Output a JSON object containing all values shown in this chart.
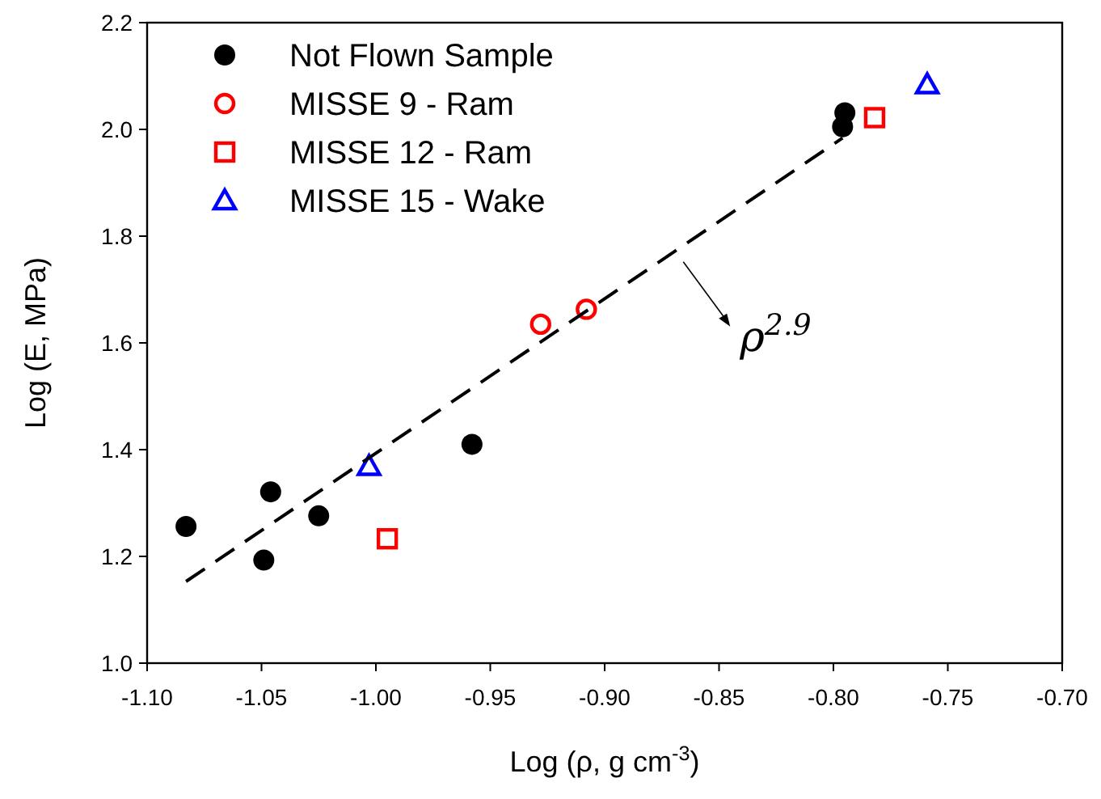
{
  "chart_data": {
    "type": "scatter",
    "xlabel": "Log (ρ, g cm$^{-3}$)",
    "ylabel": "Log (E, MPa)",
    "xlim": [
      -1.1,
      -0.7
    ],
    "xticks": [
      {
        "value": -1.1,
        "label": "-1.10"
      },
      {
        "value": -1.05,
        "label": "-1.05"
      },
      {
        "value": -1.0,
        "label": "-1.00"
      },
      {
        "value": -0.95,
        "label": "-0.95"
      },
      {
        "value": -0.9,
        "label": "-0.90"
      },
      {
        "value": -0.85,
        "label": "-0.85"
      },
      {
        "value": -0.8,
        "label": "-0.80"
      },
      {
        "value": -0.75,
        "label": "-0.75"
      },
      {
        "value": -0.7,
        "label": "-0.70"
      }
    ],
    "ylim": [
      1.0,
      2.2
    ],
    "yticks": [
      {
        "value": 1.0,
        "label": "1.0"
      },
      {
        "value": 1.2,
        "label": "1.2"
      },
      {
        "value": 1.4,
        "label": "1.4"
      },
      {
        "value": 1.6,
        "label": "1.6"
      },
      {
        "value": 1.8,
        "label": "1.8"
      },
      {
        "value": 2.0,
        "label": "2.0"
      },
      {
        "value": 2.2,
        "label": "2.2"
      }
    ],
    "grid": false,
    "legend": "top left",
    "series": [
      {
        "name": "Not Flown Sample",
        "color": "#000000",
        "marker": "circle",
        "x": [
          -1.083,
          -1.049,
          -1.046,
          -1.025,
          -0.958,
          -0.795,
          -0.796
        ],
        "values": [
          1.256,
          1.193,
          1.321,
          1.276,
          1.41,
          2.031,
          2.005
        ]
      },
      {
        "name": "MISSE 9 - Ram",
        "color": "#ff0000",
        "marker": "circle",
        "x": [
          -0.928,
          -0.908
        ],
        "values": [
          1.635,
          1.663
        ]
      },
      {
        "name": "MISSE 12 - Ram",
        "color": "#ff0000",
        "marker": "square",
        "x": [
          -0.995,
          -0.782
        ],
        "values": [
          1.233,
          2.022
        ]
      },
      {
        "name": "MISSE 15 - Wake",
        "color": "#0000ff",
        "marker": "triangle",
        "x": [
          -1.003,
          -0.759
        ],
        "values": [
          1.369,
          2.084
        ]
      },
      {
        "type": "line",
        "color": "#000000",
        "marker": "none",
        "line_style": "dashed",
        "x": [
          -1.083,
          -0.796
        ],
        "values": [
          1.153,
          1.984
        ]
      }
    ],
    "annotations": [
      "ρ$^{2.9}$"
    ]
  }
}
